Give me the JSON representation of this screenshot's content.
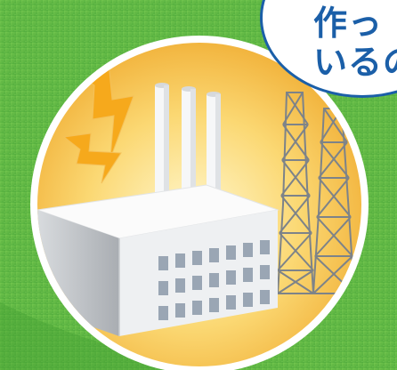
{
  "illustration": {
    "subject": "factory-with-power-towers",
    "colors": {
      "grass": "#6cc04a",
      "grass_dark": "#3f9a2e",
      "circle_glow_center": "#fff6c8",
      "circle_glow_edge": "#f3b53a",
      "circle_border": "#ffffff",
      "lightning": "#f6a91c",
      "factory_wall": "#eef0f2",
      "factory_shadow": "#b9bdc2",
      "window": "#9aa6b4",
      "tower": "#8a8f95"
    }
  },
  "speech_bubble": {
    "lines": [
      "作っ",
      "いるの"
    ],
    "colors": {
      "text": "#1b5fa8",
      "border": "#1b5fa8",
      "fill": "#ffffff"
    }
  }
}
